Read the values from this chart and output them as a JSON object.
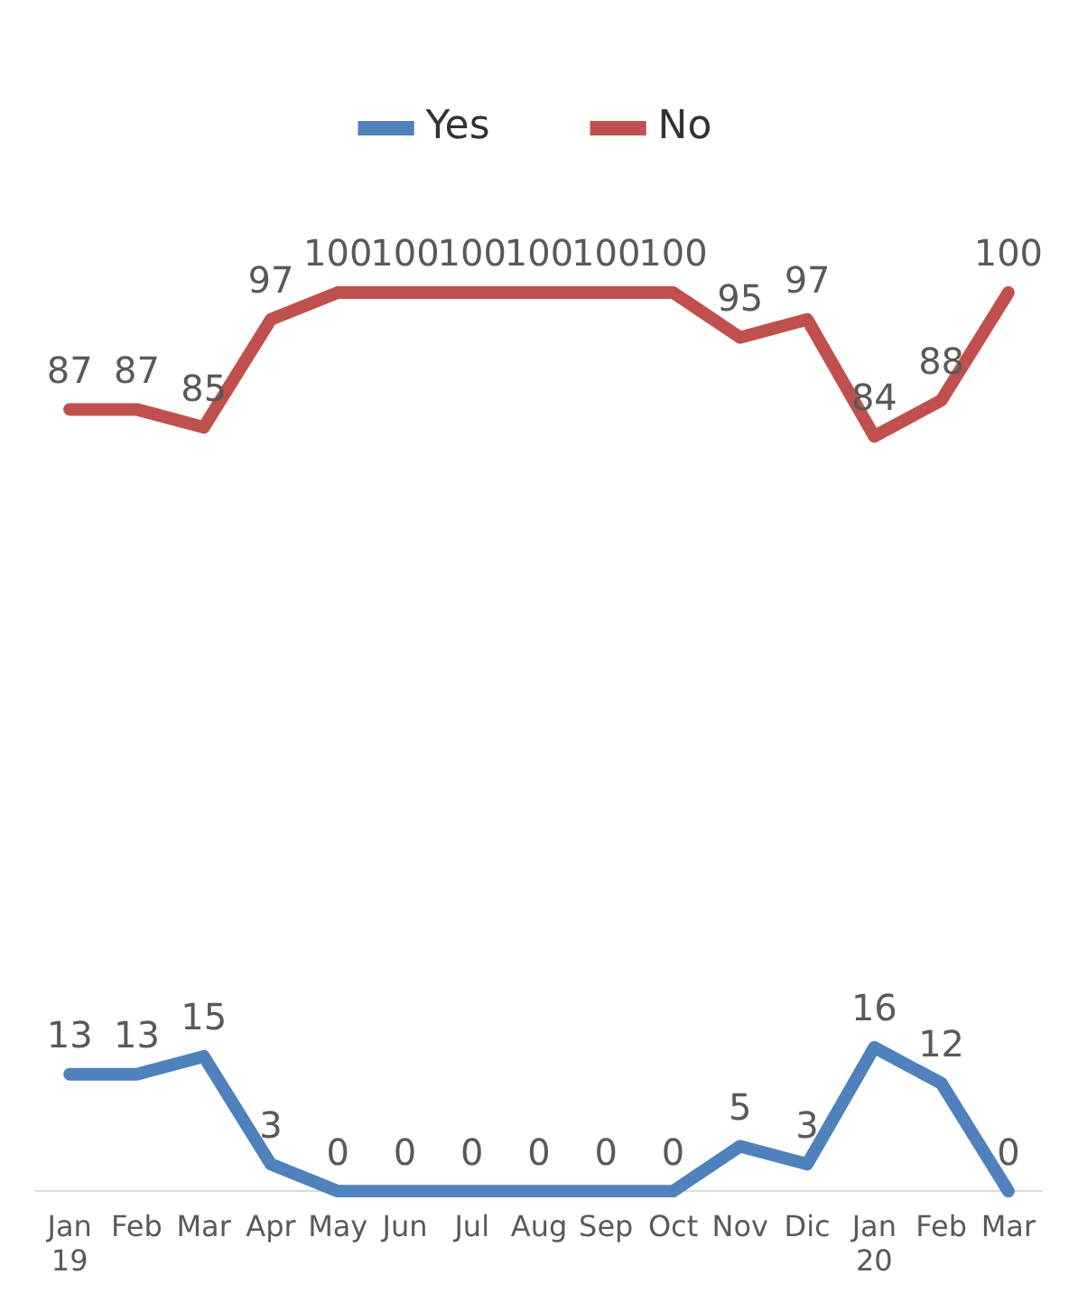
{
  "chart_data": {
    "type": "line",
    "categories": [
      "Jan\n19",
      "Feb",
      "Mar",
      "Apr",
      "May",
      "Jun",
      "Jul",
      "Aug",
      "Sep",
      "Oct",
      "Nov",
      "Dic",
      "Jan\n20",
      "Feb",
      "Mar"
    ],
    "series": [
      {
        "name": "Yes",
        "color": "#4f81bd",
        "values": [
          13,
          13,
          15,
          3,
          0,
          0,
          0,
          0,
          0,
          0,
          5,
          3,
          16,
          12,
          0
        ]
      },
      {
        "name": "No",
        "color": "#c0504d",
        "values": [
          87,
          87,
          85,
          97,
          100,
          100,
          100,
          100,
          100,
          100,
          95,
          97,
          84,
          88,
          100
        ]
      }
    ],
    "tick_labels": "x",
    "data_labels": true,
    "legend": "top",
    "grid": false,
    "marker": "none",
    "line_style": "solid"
  }
}
